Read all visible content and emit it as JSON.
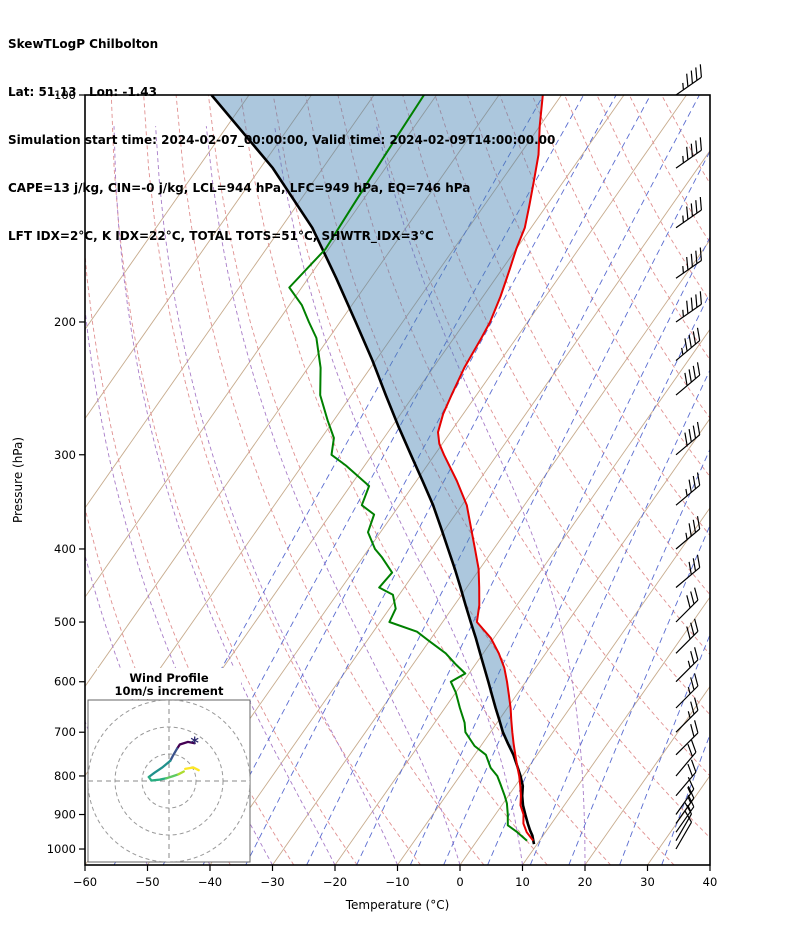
{
  "header": {
    "lines": [
      "SkewTLogP Chilbolton",
      "Lat: 51.13   Lon: -1.43",
      "Simulation start time: 2024-02-07_00:00:00, Valid time: 2024-02-09T14:00:00.00",
      "CAPE=13 j/kg, CIN=-0 j/kg, LCL=944 hPa, LFC=949 hPa, EQ=746 hPa",
      "LFT IDX=2°C, K IDX=22°C, TOTAL TOTS=51°C, SHWTR_IDX=3°C"
    ]
  },
  "axes": {
    "x_label": "Temperature (°C)",
    "y_label": "Pressure (hPa)",
    "x_ticks": [
      -60,
      -50,
      -40,
      -30,
      -20,
      -10,
      0,
      10,
      20,
      30,
      40
    ],
    "y_ticks": [
      100,
      200,
      300,
      400,
      500,
      600,
      700,
      800,
      900,
      1000
    ],
    "t_min": -60,
    "t_max": 40,
    "p_top": 100,
    "p_bottom": 1050
  },
  "colors": {
    "temperature": "#e60000",
    "dewpoint": "#008000",
    "parcel": "#000000",
    "isotherm": "#c7ab8d",
    "dry_adiabat": "#e09090",
    "moist_adiabat": "#a87cc8",
    "mixing_ratio": "#5a6cd0",
    "cape_fill": "#4682b4",
    "cape_fill_opacity": 0.45,
    "barb": "#000000",
    "frame": "#000000",
    "inset_ring": "#999999"
  },
  "chart_data": {
    "type": "skewt_logp",
    "station": "Chilbolton",
    "lat": 51.13,
    "lon": -1.43,
    "levels": {
      "cape_j_kg": 13,
      "cin_j_kg": 0,
      "lcl_hpa": 944,
      "lfc_hpa": 949,
      "eq_hpa": 746,
      "lft_idx_c": 2,
      "k_idx_c": 22,
      "total_totals_c": 51,
      "shwtr_idx_c": 3
    },
    "series": [
      {
        "name": "temperature",
        "points": [
          [
            975,
            9
          ],
          [
            950,
            7
          ],
          [
            925,
            5.5
          ],
          [
            900,
            4.5
          ],
          [
            875,
            3
          ],
          [
            850,
            2
          ],
          [
            825,
            0.8
          ],
          [
            800,
            -0.5
          ],
          [
            775,
            -2
          ],
          [
            750,
            -3.5
          ],
          [
            725,
            -5
          ],
          [
            700,
            -6.5
          ],
          [
            675,
            -8
          ],
          [
            650,
            -9.5
          ],
          [
            625,
            -11.2
          ],
          [
            600,
            -13
          ],
          [
            575,
            -15
          ],
          [
            550,
            -17.5
          ],
          [
            525,
            -20.5
          ],
          [
            500,
            -24.5
          ],
          [
            475,
            -26
          ],
          [
            450,
            -28
          ],
          [
            425,
            -30.2
          ],
          [
            400,
            -33
          ],
          [
            375,
            -36
          ],
          [
            350,
            -39.2
          ],
          [
            325,
            -43.5
          ],
          [
            300,
            -48.5
          ],
          [
            290,
            -50.5
          ],
          [
            280,
            -52
          ],
          [
            265,
            -53.2
          ],
          [
            250,
            -54
          ],
          [
            230,
            -55
          ],
          [
            210,
            -55.6
          ],
          [
            200,
            -56
          ],
          [
            185,
            -57.2
          ],
          [
            170,
            -58.8
          ],
          [
            160,
            -60
          ],
          [
            150,
            -61
          ],
          [
            140,
            -62.8
          ],
          [
            130,
            -64.8
          ],
          [
            120,
            -67
          ],
          [
            110,
            -70
          ],
          [
            100,
            -73
          ]
        ]
      },
      {
        "name": "dewpoint",
        "points": [
          [
            975,
            8
          ],
          [
            950,
            5.5
          ],
          [
            930,
            3.2
          ],
          [
            900,
            2
          ],
          [
            870,
            0.6
          ],
          [
            850,
            -0.6
          ],
          [
            820,
            -2.6
          ],
          [
            800,
            -4
          ],
          [
            780,
            -6
          ],
          [
            750,
            -8.2
          ],
          [
            730,
            -11
          ],
          [
            700,
            -14
          ],
          [
            680,
            -15.2
          ],
          [
            650,
            -17.6
          ],
          [
            620,
            -20
          ],
          [
            600,
            -22
          ],
          [
            585,
            -20.6
          ],
          [
            570,
            -23
          ],
          [
            550,
            -26
          ],
          [
            530,
            -30
          ],
          [
            515,
            -33
          ],
          [
            500,
            -38.5
          ],
          [
            480,
            -39
          ],
          [
            460,
            -41
          ],
          [
            450,
            -44
          ],
          [
            430,
            -43.6
          ],
          [
            410,
            -47
          ],
          [
            400,
            -49
          ],
          [
            380,
            -52
          ],
          [
            360,
            -53
          ],
          [
            350,
            -56
          ],
          [
            330,
            -57
          ],
          [
            310,
            -63
          ],
          [
            300,
            -66.5
          ],
          [
            285,
            -68
          ],
          [
            270,
            -71
          ],
          [
            250,
            -75
          ],
          [
            230,
            -78
          ],
          [
            210,
            -82
          ],
          [
            200,
            -85
          ],
          [
            190,
            -88
          ],
          [
            180,
            -92
          ],
          [
            160,
            -90.5
          ],
          [
            140,
            -91
          ],
          [
            120,
            -91.5
          ],
          [
            100,
            -92
          ]
        ]
      },
      {
        "name": "parcel",
        "points": [
          [
            985,
            9.5
          ],
          [
            960,
            8.3
          ],
          [
            944,
            7.3
          ],
          [
            925,
            6.2
          ],
          [
            900,
            4.8
          ],
          [
            875,
            3.4
          ],
          [
            850,
            2.2
          ],
          [
            825,
            1.2
          ],
          [
            800,
            -0.3
          ],
          [
            775,
            -2
          ],
          [
            750,
            -3.8
          ],
          [
            725,
            -5.9
          ],
          [
            700,
            -8
          ],
          [
            675,
            -9.9
          ],
          [
            650,
            -11.9
          ],
          [
            625,
            -13.9
          ],
          [
            600,
            -16
          ],
          [
            575,
            -18.2
          ],
          [
            550,
            -20.5
          ],
          [
            525,
            -22.9
          ],
          [
            500,
            -25.5
          ],
          [
            475,
            -28.2
          ],
          [
            450,
            -31
          ],
          [
            425,
            -34
          ],
          [
            400,
            -37.3
          ],
          [
            375,
            -40.8
          ],
          [
            350,
            -44.6
          ],
          [
            325,
            -49
          ],
          [
            300,
            -53.8
          ],
          [
            275,
            -59
          ],
          [
            250,
            -64.5
          ],
          [
            225,
            -70.5
          ],
          [
            200,
            -77.5
          ],
          [
            175,
            -85.5
          ],
          [
            150,
            -95
          ],
          [
            125,
            -108
          ],
          [
            100,
            -126
          ]
        ]
      }
    ],
    "background": {
      "isotherms_c": {
        "min": -120,
        "max": 40,
        "step": 10
      },
      "dry_adiabats_c": {
        "min": -40,
        "max": 150,
        "step": 10
      },
      "moist_adiabats_c": {
        "min": -60,
        "max": 20,
        "step": 10
      },
      "mixing_ratio_g_kg": [
        0.02,
        0.05,
        0.1,
        0.2,
        0.5,
        1,
        2,
        3,
        5,
        8,
        12,
        20,
        30,
        50
      ]
    },
    "wind_barbs": [
      {
        "p": 1000,
        "kt": 10,
        "dir": 30
      },
      {
        "p": 975,
        "kt": 10,
        "dir": 30
      },
      {
        "p": 950,
        "kt": 15,
        "dir": 35
      },
      {
        "p": 925,
        "kt": 15,
        "dir": 35
      },
      {
        "p": 900,
        "kt": 15,
        "dir": 35
      },
      {
        "p": 850,
        "kt": 20,
        "dir": 40
      },
      {
        "p": 800,
        "kt": 20,
        "dir": 40
      },
      {
        "p": 750,
        "kt": 20,
        "dir": 45
      },
      {
        "p": 700,
        "kt": 25,
        "dir": 45
      },
      {
        "p": 650,
        "kt": 25,
        "dir": 45
      },
      {
        "p": 600,
        "kt": 25,
        "dir": 45
      },
      {
        "p": 550,
        "kt": 30,
        "dir": 45
      },
      {
        "p": 500,
        "kt": 30,
        "dir": 45
      },
      {
        "p": 450,
        "kt": 30,
        "dir": 50
      },
      {
        "p": 400,
        "kt": 35,
        "dir": 50
      },
      {
        "p": 350,
        "kt": 35,
        "dir": 50
      },
      {
        "p": 300,
        "kt": 40,
        "dir": 50
      },
      {
        "p": 250,
        "kt": 40,
        "dir": 50
      },
      {
        "p": 225,
        "kt": 45,
        "dir": 50
      },
      {
        "p": 200,
        "kt": 45,
        "dir": 55
      },
      {
        "p": 175,
        "kt": 45,
        "dir": 55
      },
      {
        "p": 150,
        "kt": 45,
        "dir": 55
      },
      {
        "p": 125,
        "kt": 45,
        "dir": 55
      },
      {
        "p": 100,
        "kt": 45,
        "dir": 55
      }
    ],
    "hodograph": {
      "title": "Wind Profile",
      "subtitle": "10m/s increment",
      "ring_interval_ms": 10,
      "rings_ms": [
        10,
        20,
        30
      ],
      "trace": [
        {
          "color": "#440154",
          "uv": [
            [
              9.5,
              14
            ],
            [
              7,
              14.5
            ],
            [
              4,
              13.5
            ],
            [
              3,
              12
            ]
          ]
        },
        {
          "color": "#3b528b",
          "uv": [
            [
              3,
              12
            ],
            [
              1.5,
              9.5
            ],
            [
              0.5,
              7.5
            ]
          ]
        },
        {
          "color": "#21918c",
          "uv": [
            [
              0.5,
              7.5
            ],
            [
              -2.5,
              5
            ],
            [
              -5.5,
              3
            ],
            [
              -7.5,
              1.5
            ]
          ]
        },
        {
          "color": "#27ad81",
          "uv": [
            [
              -7.5,
              1.5
            ],
            [
              -6.5,
              0.2
            ],
            [
              -3.5,
              0.5
            ],
            [
              -1,
              1
            ]
          ]
        },
        {
          "color": "#5ec962",
          "uv": [
            [
              -1,
              1
            ],
            [
              1.5,
              1.8
            ],
            [
              3.5,
              2.5
            ]
          ]
        },
        {
          "color": "#addc30",
          "uv": [
            [
              3.5,
              2.5
            ],
            [
              5.5,
              3.5
            ]
          ]
        },
        {
          "color": "#fde725",
          "uv": [
            [
              6,
              4.5
            ],
            [
              9,
              5
            ],
            [
              11,
              4
            ]
          ]
        }
      ],
      "marker": {
        "uv": [
          9.5,
          14
        ],
        "glyph": "*",
        "color": "#2d2a6e"
      }
    }
  }
}
